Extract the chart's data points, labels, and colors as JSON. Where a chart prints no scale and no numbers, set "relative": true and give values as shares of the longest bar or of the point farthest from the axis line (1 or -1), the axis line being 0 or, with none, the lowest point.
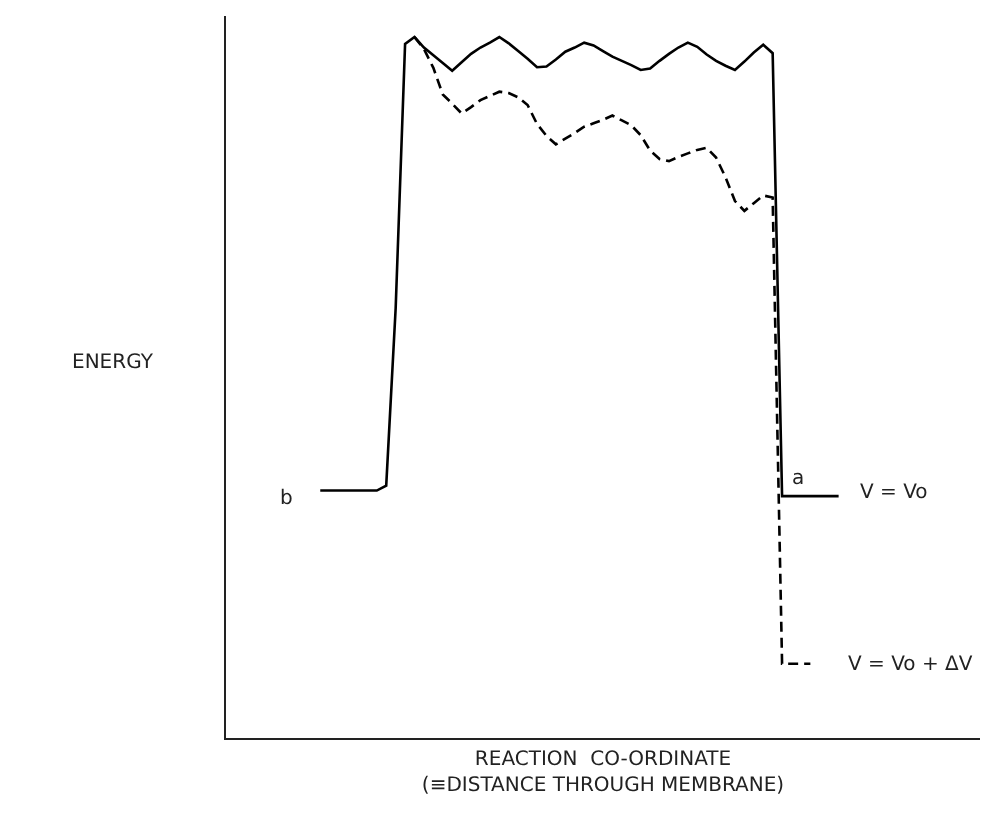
{
  "chart_data": {
    "type": "line",
    "relative": true,
    "xlabel": "REACTION  CO-ORDINATE\n(≡DISTANCE THROUGH MEMBRANE)",
    "ylabel": "ENERGY",
    "tick_labels": false,
    "categories": [
      null,
      null,
      null,
      null,
      null,
      null,
      null,
      null,
      null,
      null,
      null,
      null,
      null,
      null,
      null,
      null,
      null,
      null,
      null,
      null,
      null,
      null,
      null,
      null,
      null,
      null,
      null,
      null,
      null,
      null,
      null,
      null,
      null,
      null,
      null,
      null,
      null,
      null,
      null,
      null,
      null,
      null,
      null,
      null,
      null,
      null,
      null,
      null,
      null,
      null,
      null,
      null,
      null,
      null,
      null,
      null,
      null,
      null,
      null,
      null,
      null,
      null,
      null,
      null,
      null,
      null,
      null,
      null,
      null,
      null,
      null,
      null,
      null,
      null,
      null,
      null,
      null,
      null,
      null,
      null,
      null
    ],
    "series": [
      {
        "color": "#000000",
        "line_style": "solid",
        "values": [
          null,
          null,
          null,
          null,
          null,
          null,
          null,
          null,
          null,
          null,
          0.353,
          0.353,
          0.353,
          0.353,
          0.353,
          0.353,
          0.353,
          0.36,
          0.613,
          0.99,
          1,
          0.985,
          0.974,
          0.963,
          0.952,
          0.964,
          0.976,
          0.985,
          0.992,
          1,
          0.991,
          0.98,
          0.969,
          0.957,
          0.958,
          0.968,
          0.979,
          0.985,
          0.992,
          0.988,
          0.98,
          0.972,
          0.966,
          0.96,
          0.953,
          0.955,
          0.966,
          0.976,
          0.985,
          0.992,
          0.986,
          0.975,
          0.966,
          0.959,
          0.953,
          0.965,
          0.978,
          0.989,
          0.977,
          0.345,
          0.345,
          0.345,
          0.345,
          0.345,
          0.345,
          0.345,
          null,
          null,
          null,
          null,
          null,
          null,
          null,
          null,
          null,
          null,
          null,
          null,
          null,
          null,
          null
        ]
      },
      {
        "color": "#000000",
        "line_style": "dashed",
        "values": [
          null,
          null,
          null,
          null,
          null,
          null,
          null,
          null,
          null,
          null,
          null,
          null,
          null,
          null,
          null,
          null,
          null,
          null,
          null,
          null,
          1,
          0.983,
          0.956,
          0.918,
          0.905,
          0.891,
          0.9,
          0.91,
          0.916,
          0.922,
          0.92,
          0.914,
          0.903,
          0.876,
          0.859,
          0.847,
          0.855,
          0.863,
          0.872,
          0.877,
          0.882,
          0.888,
          0.881,
          0.874,
          0.86,
          0.838,
          0.826,
          0.823,
          0.829,
          0.834,
          0.839,
          0.842,
          0.828,
          0.8,
          0.766,
          0.752,
          0.763,
          0.774,
          0.771,
          0.106,
          0.106,
          0.106,
          0.106,
          null,
          null,
          null,
          null,
          null,
          null,
          null,
          null,
          null,
          null,
          null,
          null,
          null,
          null,
          null,
          null,
          null,
          null
        ]
      }
    ],
    "annotations": [
      "b",
      "a",
      "V = Vo",
      "V = Vo + ΔV"
    ]
  }
}
